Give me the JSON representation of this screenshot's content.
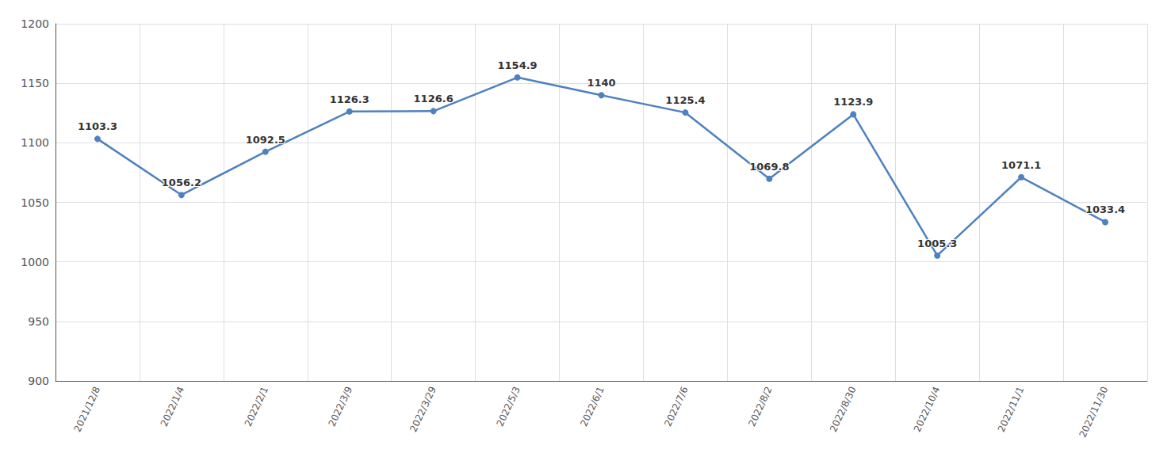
{
  "chart_data": {
    "type": "line",
    "categories": [
      "2021/12/8",
      "2022/1/4",
      "2022/2/1",
      "2022/3/9",
      "2022/3/29",
      "2022/5/3",
      "2022/6/1",
      "2022/7/6",
      "2022/8/2",
      "2022/8/30",
      "2022/10/4",
      "2022/11/1",
      "2022/11/30"
    ],
    "values": [
      1103.3,
      1056.2,
      1092.5,
      1126.3,
      1126.6,
      1154.9,
      1140,
      1125.4,
      1069.8,
      1123.9,
      1005.3,
      1071.1,
      1033.4
    ],
    "color": "#4f81bd",
    "marker": "circle",
    "ylim": [
      900,
      1200
    ],
    "yticks": [
      900,
      950,
      1000,
      1050,
      1100,
      1150,
      1200
    ],
    "grid": true,
    "data_labels": true
  }
}
